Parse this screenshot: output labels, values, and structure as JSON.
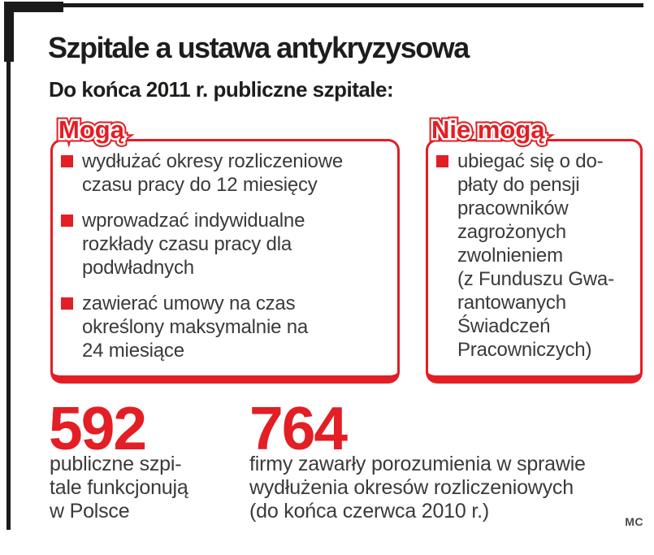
{
  "title": "Szpitale a ustawa antykryzysowa",
  "subtitle": "Do końca 2011 r. publiczne szpitale:",
  "can_box": {
    "label": "Mogą",
    "items": [
      "wydłużać okresy rozliczeniowe\nczasu pracy do 12 miesięcy",
      "wprowadzać indywidualne\nrozkłady czasu pracy dla\npodwładnych",
      "zawierać umowy na czas\nokreślony maksymalnie na\n24 miesiące"
    ]
  },
  "cannot_box": {
    "label": "Nie mogą",
    "items": [
      "ubiegać się o do-\npłaty do pensji\npracowników\nzagrożonych\nzwolnieniem\n(z Funduszu Gwa-\nrantowanych\nŚwiadczeń\nPracowniczych)"
    ]
  },
  "stats": [
    {
      "value": "592",
      "caption": "publiczne szpi-\ntale funkcjonują\nw Polsce"
    },
    {
      "value": "764",
      "caption": "firmy zawarły porozumienia w sprawie\nwydłużenia okresów rozliczeniowych\n(do końca czerwca 2010 r.)"
    }
  ],
  "credit": "MC",
  "colors": {
    "accent_red": "#e31e24",
    "frame_black": "#1a1a1a",
    "heading_black": "#1d1d1b",
    "body_gray": "#3a3a39"
  }
}
